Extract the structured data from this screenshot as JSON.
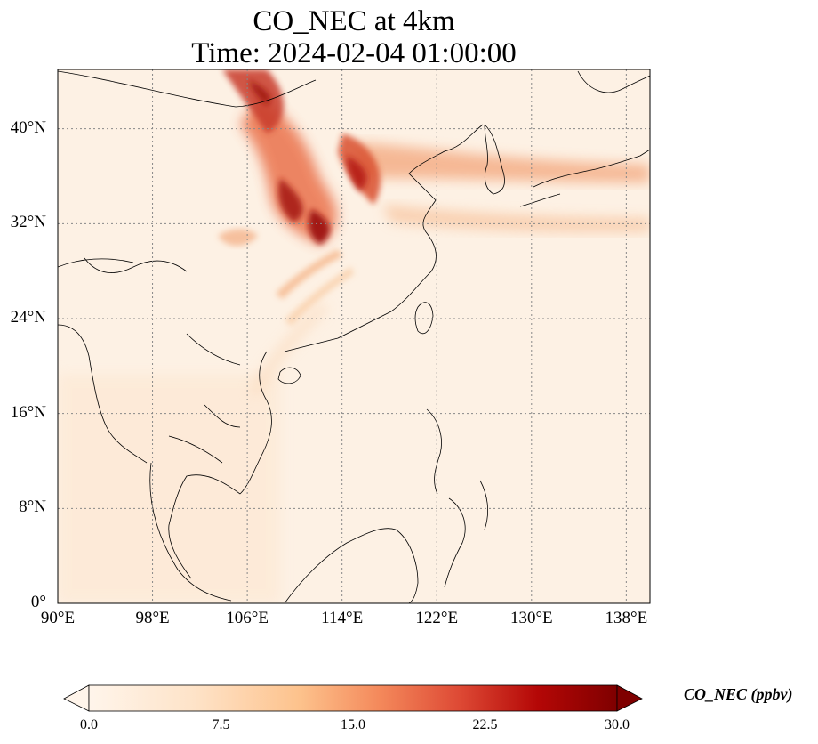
{
  "title": "CO_NEC at 4km",
  "subtitle": "Time: 2024-02-04 01:00:00",
  "colors": {
    "low": "#fff5eb",
    "mid": "#fdae6b",
    "high": "#7f0000",
    "grid": "#888888",
    "coast": "#000000"
  },
  "map_data": {
    "projection": "PlateCarree",
    "lon_range": [
      90,
      140
    ],
    "lat_range": [
      0,
      45
    ],
    "lon_ticks": [
      "90°E",
      "98°E",
      "106°E",
      "114°E",
      "122°E",
      "130°E",
      "138°E"
    ],
    "lon_tick_values": [
      90,
      98,
      106,
      114,
      122,
      130,
      138
    ],
    "lat_ticks": [
      "0°",
      "8°N",
      "16°N",
      "24°N",
      "32°N",
      "40°N"
    ],
    "lat_tick_values": [
      0,
      8,
      16,
      24,
      32,
      40
    ],
    "gridlines": true,
    "field": "CO_NEC",
    "units": "ppbv"
  },
  "colorbar": {
    "label": "CO_NEC (ppbv)",
    "min": 0,
    "max": 30,
    "ticks": [
      "0.0",
      "7.5",
      "15.0",
      "22.5",
      "30.0"
    ],
    "tick_values": [
      0,
      7.5,
      15,
      22.5,
      30
    ],
    "extend": "both",
    "colormap": "OrRd"
  }
}
